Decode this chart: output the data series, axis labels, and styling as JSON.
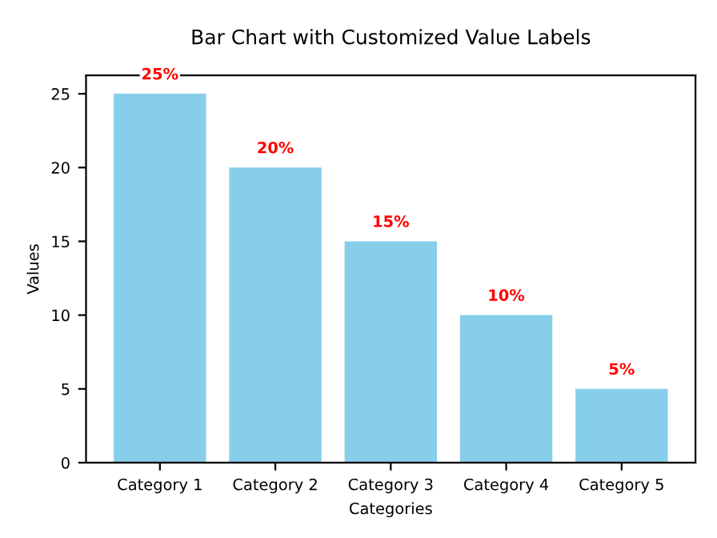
{
  "chart_data": {
    "type": "bar",
    "title": "Bar Chart with Customized Value Labels",
    "xlabel": "Categories",
    "ylabel": "Values",
    "categories": [
      "Category 1",
      "Category 2",
      "Category 3",
      "Category 4",
      "Category 5"
    ],
    "values": [
      25,
      20,
      15,
      10,
      5
    ],
    "value_labels": [
      "25%",
      "20%",
      "15%",
      "10%",
      "5%"
    ],
    "color": "#87ceeb",
    "ylim": [
      0,
      26.25
    ],
    "yticks": [
      0,
      5,
      10,
      15,
      20,
      25
    ],
    "grid": false,
    "legend": false
  }
}
